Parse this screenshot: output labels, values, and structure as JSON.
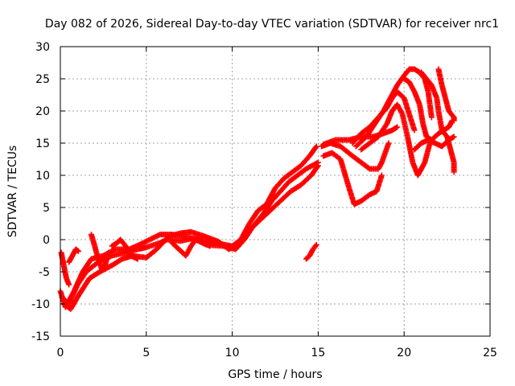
{
  "chart_data": {
    "type": "scatter",
    "title": "Day 082 of 2026, Sidereal Day-to-day VTEC variation (SDTVAR) for receiver nrc1",
    "xlabel": "GPS time / hours",
    "ylabel": "SDTVAR / TECUs",
    "xlim": [
      0,
      25
    ],
    "ylim": [
      -15,
      30
    ],
    "xticks": [
      "0",
      "5",
      "10",
      "15",
      "20",
      "25"
    ],
    "yticks": [
      "-15",
      "-10",
      "-5",
      "0",
      "5",
      "10",
      "15",
      "20",
      "25",
      "30"
    ],
    "grid": true,
    "marker": "+",
    "color": "#ff0000",
    "series": [
      {
        "name": "s1",
        "points": [
          [
            0,
            -8
          ],
          [
            0.3,
            -10.5
          ],
          [
            0.8,
            -8
          ],
          [
            1.3,
            -5
          ],
          [
            1.8,
            -3
          ],
          [
            2.5,
            -2.5
          ],
          [
            3.2,
            -1.5
          ],
          [
            4,
            -1.5
          ],
          [
            4.6,
            -0.8
          ],
          [
            5.2,
            0
          ],
          [
            5.8,
            0.8
          ],
          [
            6.5,
            0.8
          ],
          [
            7.2,
            0.5
          ],
          [
            8,
            0
          ],
          [
            9,
            -0.5
          ],
          [
            10,
            -1
          ],
          [
            10.5,
            0
          ],
          [
            11,
            2.5
          ],
          [
            11.5,
            4.5
          ],
          [
            12,
            5.5
          ],
          [
            12.5,
            8
          ],
          [
            13,
            9.5
          ],
          [
            13.5,
            10.5
          ],
          [
            14,
            11.5
          ],
          [
            14.5,
            13
          ],
          [
            14.9,
            14.5
          ]
        ]
      },
      {
        "name": "s2",
        "points": [
          [
            0.1,
            -9
          ],
          [
            0.5,
            -10
          ],
          [
            1,
            -7
          ],
          [
            1.5,
            -5
          ],
          [
            2.2,
            -3.5
          ],
          [
            3,
            -2.5
          ],
          [
            3.8,
            -2
          ],
          [
            4.5,
            -1.5
          ],
          [
            5,
            -1.2
          ],
          [
            5.8,
            -0.5
          ],
          [
            6.2,
            0
          ],
          [
            7,
            -0.2
          ],
          [
            7.7,
            0.2
          ],
          [
            8.5,
            -0.8
          ],
          [
            9.5,
            -1
          ],
          [
            10.2,
            -1.5
          ],
          [
            10.7,
            0
          ],
          [
            11.2,
            2
          ],
          [
            11.8,
            4
          ],
          [
            12.3,
            6
          ],
          [
            12.8,
            7.5
          ],
          [
            13.3,
            9
          ],
          [
            13.8,
            10
          ],
          [
            14.3,
            11
          ],
          [
            15,
            12
          ]
        ]
      },
      {
        "name": "s3",
        "points": [
          [
            0.2,
            -10
          ],
          [
            0.6,
            -10.8
          ],
          [
            1.1,
            -8.5
          ],
          [
            1.7,
            -6
          ],
          [
            2.3,
            -5
          ],
          [
            3,
            -4
          ],
          [
            3.6,
            -3
          ],
          [
            4.2,
            -2.5
          ],
          [
            5,
            -2.8
          ],
          [
            5.6,
            -1.5
          ],
          [
            6.3,
            0.5
          ],
          [
            7,
            1
          ],
          [
            7.6,
            1.2
          ],
          [
            8.3,
            0.6
          ],
          [
            9.2,
            -0.3
          ],
          [
            9.8,
            -1.5
          ],
          [
            10.4,
            -0.8
          ],
          [
            11,
            1.5
          ],
          [
            11.6,
            3
          ],
          [
            12.2,
            4.5
          ],
          [
            12.8,
            6
          ],
          [
            13.4,
            7.5
          ],
          [
            14,
            8.5
          ],
          [
            14.6,
            10
          ],
          [
            15,
            11.5
          ]
        ]
      },
      {
        "name": "s4",
        "points": [
          [
            0.05,
            -2
          ],
          [
            0.2,
            -4
          ],
          [
            0.35,
            -6
          ],
          [
            0.5,
            -7
          ]
        ]
      },
      {
        "name": "s5",
        "points": [
          [
            0.5,
            -3.5
          ],
          [
            0.7,
            -2.5
          ],
          [
            0.9,
            -1.5
          ],
          [
            1.05,
            -1.8
          ]
        ]
      },
      {
        "name": "s6",
        "points": [
          [
            1.8,
            0.8
          ],
          [
            2,
            -1
          ],
          [
            2.2,
            -3
          ],
          [
            2.4,
            -4.5
          ],
          [
            2.6,
            -4
          ],
          [
            2.8,
            -2
          ]
        ]
      },
      {
        "name": "s7",
        "points": [
          [
            3,
            -1
          ],
          [
            3.3,
            -0.5
          ],
          [
            3.5,
            0
          ],
          [
            3.8,
            -1
          ],
          [
            4.1,
            -2.5
          ],
          [
            4.5,
            -3
          ]
        ]
      },
      {
        "name": "s8",
        "points": [
          [
            6.5,
            -0.5
          ],
          [
            6.9,
            -1.5
          ],
          [
            7.3,
            -2.5
          ],
          [
            7.6,
            -1
          ],
          [
            8,
            0.5
          ],
          [
            8.3,
            -0.5
          ],
          [
            8.7,
            -1
          ]
        ]
      },
      {
        "name": "s9",
        "points": [
          [
            14.3,
            -3
          ],
          [
            14.5,
            -2.5
          ],
          [
            14.7,
            -1.5
          ],
          [
            14.9,
            -0.8
          ]
        ]
      },
      {
        "name": "s10",
        "points": [
          [
            15.2,
            14.5
          ],
          [
            15.7,
            15
          ],
          [
            16.3,
            14.5
          ],
          [
            17,
            13
          ],
          [
            17.5,
            12
          ],
          [
            18,
            11
          ],
          [
            18.5,
            11
          ],
          [
            18.7,
            12
          ],
          [
            18.9,
            13.5
          ],
          [
            19.1,
            15
          ]
        ]
      },
      {
        "name": "s11",
        "points": [
          [
            15.3,
            13
          ],
          [
            15.8,
            13.5
          ],
          [
            16.3,
            12.5
          ],
          [
            16.8,
            8
          ],
          [
            17.1,
            5.5
          ],
          [
            17.5,
            6
          ],
          [
            18,
            7
          ],
          [
            18.4,
            7.5
          ],
          [
            18.7,
            10
          ]
        ]
      },
      {
        "name": "s12",
        "points": [
          [
            15.3,
            14.8
          ],
          [
            16,
            15.5
          ],
          [
            16.8,
            15.5
          ],
          [
            17.5,
            16
          ],
          [
            18.2,
            16
          ],
          [
            18.8,
            16.5
          ],
          [
            19.3,
            17
          ],
          [
            19.6,
            17.5
          ]
        ]
      },
      {
        "name": "s13",
        "points": [
          [
            17.2,
            14.5
          ],
          [
            17.8,
            16
          ],
          [
            18.3,
            18
          ],
          [
            18.8,
            20
          ],
          [
            19.2,
            22
          ],
          [
            19.6,
            24
          ],
          [
            20,
            25.5
          ],
          [
            20.3,
            26.5
          ],
          [
            20.6,
            26.5
          ],
          [
            20.9,
            26
          ],
          [
            21.2,
            25
          ],
          [
            21.4,
            23
          ],
          [
            21.6,
            19
          ]
        ]
      },
      {
        "name": "s14",
        "points": [
          [
            17,
            15
          ],
          [
            17.5,
            16.5
          ],
          [
            18,
            17.5
          ],
          [
            18.5,
            19
          ],
          [
            19,
            20.5
          ],
          [
            19.3,
            22
          ],
          [
            19.6,
            23
          ],
          [
            20,
            22
          ],
          [
            20.3,
            19.5
          ],
          [
            20.6,
            17
          ]
        ]
      },
      {
        "name": "s15",
        "points": [
          [
            17.5,
            14
          ],
          [
            18,
            15
          ],
          [
            18.5,
            16
          ],
          [
            19,
            18
          ],
          [
            19.3,
            20
          ],
          [
            19.6,
            21
          ],
          [
            19.9,
            19.5
          ],
          [
            20.2,
            16
          ],
          [
            20.5,
            12
          ],
          [
            20.8,
            10
          ],
          [
            21.2,
            12
          ],
          [
            21.5,
            15
          ]
        ]
      },
      {
        "name": "s16",
        "points": [
          [
            20,
            25
          ],
          [
            20.3,
            24.5
          ],
          [
            20.6,
            23
          ],
          [
            20.9,
            21
          ],
          [
            21.1,
            18
          ],
          [
            21.3,
            16
          ],
          [
            21.6,
            15.5
          ],
          [
            22,
            16.5
          ],
          [
            22.3,
            17
          ],
          [
            22.6,
            17.5
          ],
          [
            22.8,
            18.5
          ]
        ]
      },
      {
        "name": "s17",
        "points": [
          [
            21,
            26
          ],
          [
            21.3,
            25
          ],
          [
            21.6,
            24
          ],
          [
            21.9,
            22
          ],
          [
            22,
            20
          ],
          [
            22.2,
            17
          ],
          [
            22.5,
            16
          ],
          [
            22.7,
            14
          ],
          [
            22.9,
            12
          ],
          [
            22.9,
            10.5
          ]
        ]
      },
      {
        "name": "s18",
        "points": [
          [
            22,
            26.5
          ],
          [
            22.2,
            24
          ],
          [
            22.4,
            22
          ],
          [
            22.6,
            20
          ],
          [
            22.9,
            19
          ],
          [
            22.9,
            18.5
          ]
        ]
      },
      {
        "name": "s19",
        "points": [
          [
            20.6,
            14
          ],
          [
            21,
            15
          ],
          [
            21.4,
            15.5
          ],
          [
            21.8,
            15
          ],
          [
            22.2,
            14.5
          ],
          [
            22.6,
            15.5
          ],
          [
            22.9,
            16
          ]
        ]
      }
    ]
  }
}
